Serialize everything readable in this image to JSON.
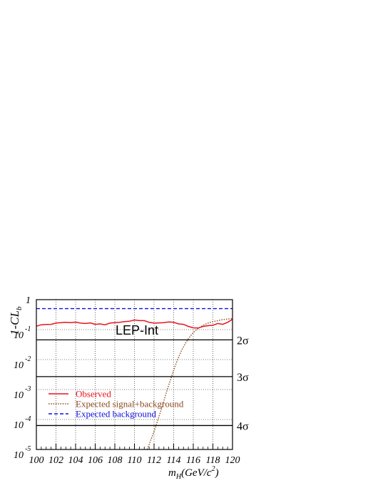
{
  "chart_data": {
    "type": "line",
    "xlabel": {
      "main": "m",
      "sub": "H",
      "rest": "(GeV/c",
      "sup": "2",
      "close": ")"
    },
    "ylabel": {
      "main": "1-CL",
      "sub": "b"
    },
    "xlim": [
      100,
      120
    ],
    "ylim": [
      1e-05,
      1
    ],
    "yscale": "log",
    "x_ticks": [
      "100",
      "102",
      "104",
      "106",
      "108",
      "110",
      "112",
      "114",
      "116",
      "118",
      "120"
    ],
    "y_ticks": [
      {
        "base": "1",
        "exp": "",
        "value": 1
      },
      {
        "base": "10",
        "exp": "-1",
        "value": 0.1
      },
      {
        "base": "10",
        "exp": "-2",
        "value": 0.01
      },
      {
        "base": "10",
        "exp": "-3",
        "value": 0.001
      },
      {
        "base": "10",
        "exp": "-4",
        "value": 0.0001
      },
      {
        "base": "10",
        "exp": "-5",
        "value": 1e-05
      }
    ],
    "grid": true,
    "annotation": "LEP-Int",
    "sigma_lines": [
      {
        "label": "2σ",
        "value": 0.0455
      },
      {
        "label": "3σ",
        "value": 0.0027
      },
      {
        "label": "4σ",
        "value": 6.3e-05
      }
    ],
    "legend_position": "bottom-left",
    "series": [
      {
        "name": "Observed",
        "color": "#e8141c",
        "style": "solid",
        "x": [
          100,
          100.5,
          101,
          101.5,
          102,
          102.5,
          103,
          103.5,
          104,
          104.5,
          105,
          105.5,
          106,
          106.5,
          107,
          107.5,
          108,
          108.5,
          109,
          109.5,
          110,
          110.5,
          111,
          111.5,
          112,
          112.5,
          113,
          113.5,
          114,
          114.5,
          115,
          115.5,
          116,
          116.5,
          117,
          117.5,
          118,
          118.5,
          119,
          119.5,
          120
        ],
        "y": [
          0.13,
          0.145,
          0.148,
          0.15,
          0.165,
          0.17,
          0.175,
          0.17,
          0.178,
          0.165,
          0.16,
          0.167,
          0.15,
          0.155,
          0.145,
          0.165,
          0.17,
          0.175,
          0.185,
          0.19,
          0.21,
          0.2,
          0.2,
          0.175,
          0.165,
          0.167,
          0.17,
          0.18,
          0.175,
          0.155,
          0.15,
          0.128,
          0.115,
          0.113,
          0.128,
          0.135,
          0.14,
          0.16,
          0.15,
          0.175,
          0.22
        ]
      },
      {
        "name": "Expected signal+background",
        "color": "#8b4a1f",
        "style": "dotted",
        "x": [
          111.3,
          111.6,
          112,
          112.4,
          112.8,
          113.2,
          113.6,
          114,
          114.4,
          114.8,
          115.2,
          115.6,
          116,
          116.5,
          117,
          117.5,
          118,
          118.5,
          119,
          119.5,
          120
        ],
        "y": [
          1e-05,
          1.8e-05,
          4e-05,
          0.0001,
          0.00025,
          0.0007,
          0.0018,
          0.0045,
          0.01,
          0.02,
          0.035,
          0.055,
          0.08,
          0.11,
          0.14,
          0.165,
          0.185,
          0.2,
          0.215,
          0.225,
          0.232
        ]
      },
      {
        "name": "Expected background",
        "color": "#1010e0",
        "style": "dashed",
        "x": [
          100,
          120
        ],
        "y": [
          0.5,
          0.5
        ]
      }
    ]
  }
}
